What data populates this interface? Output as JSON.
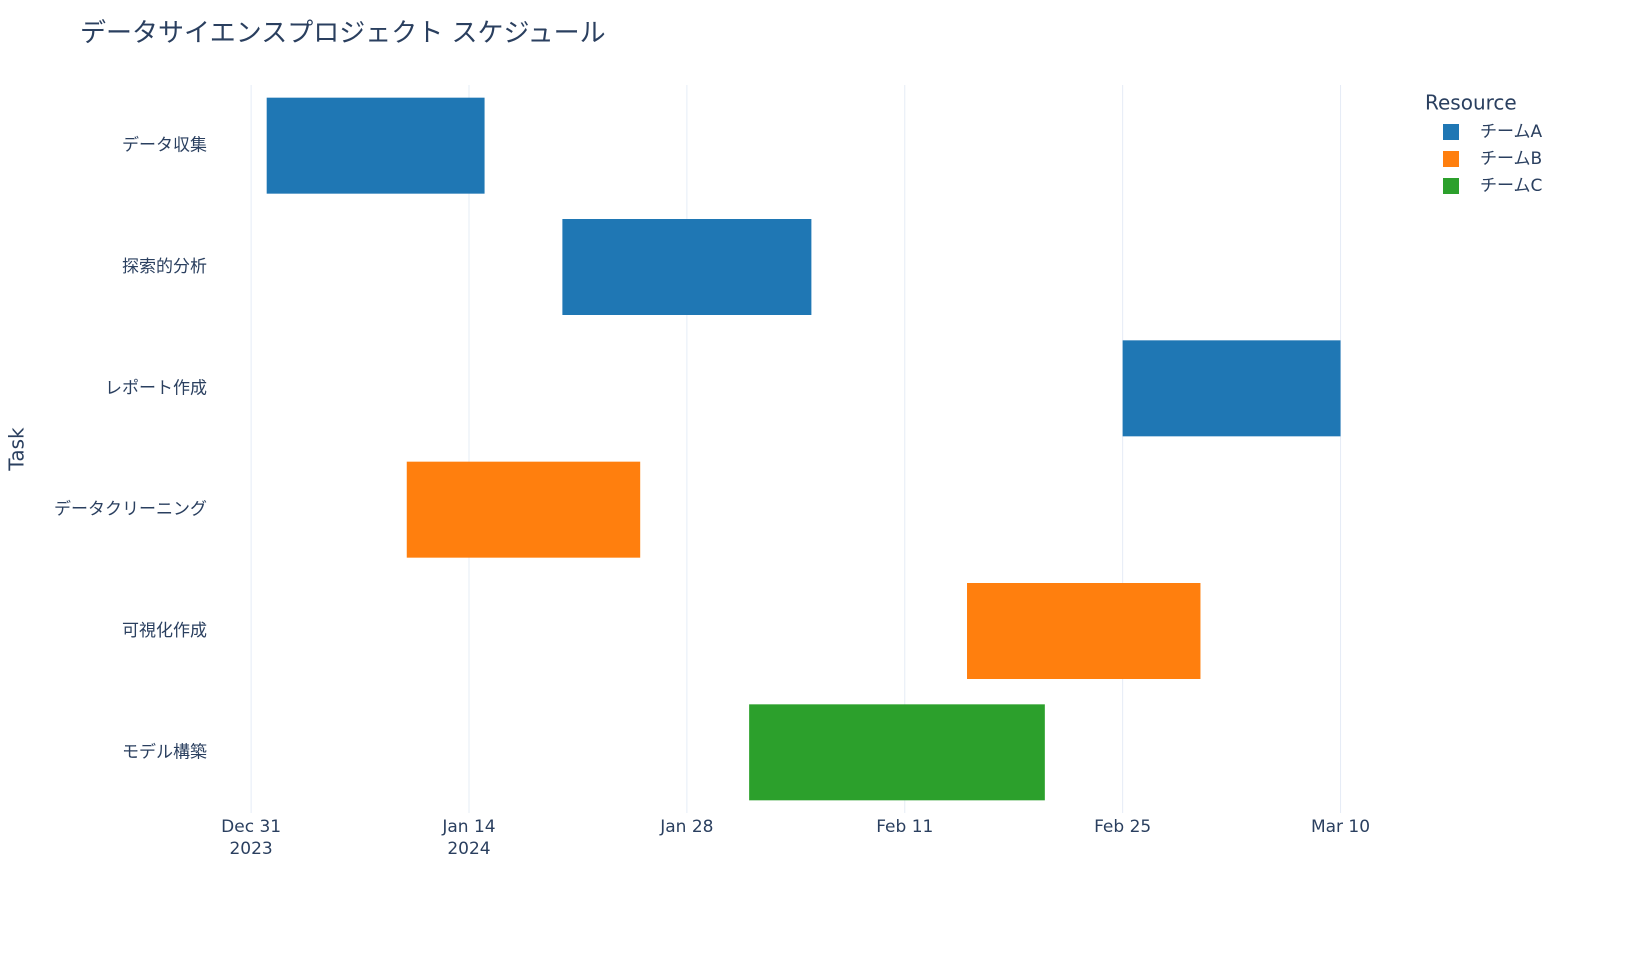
{
  "chart_data": {
    "type": "gantt",
    "title": "データサイエンスプロジェクト スケジュール",
    "y_label": "Task",
    "categories": [
      "データ収集",
      "探索的分析",
      "レポート作成",
      "データクリーニング",
      "可視化作成",
      "モデル構築"
    ],
    "legend_title": "Resource",
    "series": [
      {
        "name": "チームA",
        "color": "#1f77b4",
        "start": [
          "2024-01-01",
          "2024-01-20",
          "2024-02-25",
          null,
          null,
          null
        ],
        "end": [
          "2024-01-15",
          "2024-02-05",
          "2024-03-10",
          null,
          null,
          null
        ]
      },
      {
        "name": "チームB",
        "color": "#ff7f0e",
        "start": [
          null,
          null,
          null,
          "2024-01-10",
          "2024-02-15",
          null
        ],
        "end": [
          null,
          null,
          null,
          "2024-01-25",
          "2024-03-01",
          null
        ]
      },
      {
        "name": "チームC",
        "color": "#2ca02c",
        "start": [
          null,
          null,
          null,
          null,
          null,
          "2024-02-01"
        ],
        "end": [
          null,
          null,
          null,
          null,
          null,
          "2024-02-20"
        ]
      }
    ],
    "xlim": [
      "2023-12-29",
      "2024-03-13T12:00"
    ],
    "xticks": [
      {
        "value": "2023-12-31",
        "label": "Dec 31\n2023"
      },
      {
        "value": "2024-01-14",
        "label": "Jan 14\n2024"
      },
      {
        "value": "2024-01-28",
        "label": "Jan 28"
      },
      {
        "value": "2024-02-11",
        "label": "Feb 11"
      },
      {
        "value": "2024-02-25",
        "label": "Feb 25"
      },
      {
        "value": "2024-03-10",
        "label": "Mar 10"
      }
    ],
    "grid": true,
    "legend": "top-right"
  }
}
